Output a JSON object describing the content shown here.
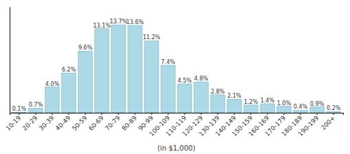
{
  "chart_data": {
    "type": "bar",
    "xlabel": "(in $1,000)",
    "categories": [
      "10-19",
      "20-29",
      "30-39",
      "40-49",
      "50-59",
      "60-69",
      "70-79",
      "80-89",
      "90-99",
      "100-109",
      "110-119",
      "120-129",
      "130-139",
      "140-149",
      "150-159",
      "160-169",
      "170-179",
      "180-189",
      "190-199",
      "200+"
    ],
    "values": [
      0.1,
      0.7,
      4.0,
      6.2,
      9.6,
      13.1,
      13.7,
      13.6,
      11.2,
      7.4,
      4.5,
      4.8,
      2.8,
      2.1,
      1.2,
      1.4,
      1.0,
      0.4,
      0.9,
      0.2
    ],
    "value_labels": [
      "0.1%",
      "0.7%",
      "4.0%",
      "6.2%",
      "9.6%",
      "13.1%",
      "13.7%",
      "13.6%",
      "11.2%",
      "7.4%",
      "4.5%",
      "4.8%",
      "2.8%",
      "2.1%",
      "1.2%",
      "1.4%",
      "1.0%",
      "0.4%",
      "0.9%",
      "0.2%"
    ],
    "color": "#add8e6",
    "ylim": [
      0,
      16.5
    ],
    "data_labels": true,
    "tick_labels": "x",
    "grid": false
  }
}
